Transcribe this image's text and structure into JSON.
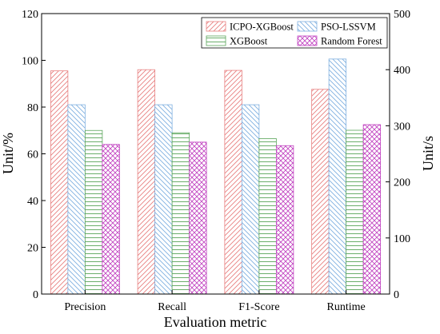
{
  "chart_data": {
    "type": "bar",
    "xlabel": "Evaluation metric",
    "ylabel_left": "Unit/%",
    "ylabel_right": "Unit/s",
    "ylim_left": [
      0,
      120
    ],
    "ylim_right": [
      0,
      500
    ],
    "yticks_left": [
      "0",
      "20",
      "40",
      "60",
      "80",
      "100",
      "120"
    ],
    "yticks_right": [
      "0",
      "100",
      "200",
      "300",
      "400",
      "500"
    ],
    "categories": [
      "Precision",
      "Recall",
      "F1-Score",
      "Runtime"
    ],
    "category_axis": [
      "left",
      "left",
      "left",
      "right"
    ],
    "series": [
      {
        "name": "ICPO-XGBoost",
        "color": "#e88080",
        "pattern": "hatch-right",
        "values": [
          95.5,
          96,
          95.7,
          365
        ]
      },
      {
        "name": "PSO-LSSVM",
        "color": "#7fb0e0",
        "pattern": "hatch-left",
        "values": [
          81,
          81,
          81,
          419
        ]
      },
      {
        "name": "XGBoost",
        "color": "#5aa55a",
        "pattern": "horizontal",
        "values": [
          70,
          69,
          66.5,
          292
        ]
      },
      {
        "name": "Random Forest",
        "color": "#c040c0",
        "pattern": "cross",
        "values": [
          64,
          65,
          63.5,
          302
        ]
      }
    ],
    "legend_position": "top-right",
    "grid": false
  }
}
